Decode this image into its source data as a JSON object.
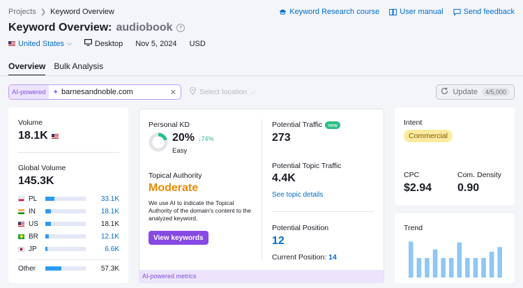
{
  "breadcrumb": {
    "root": "Projects",
    "current": "Keyword Overview"
  },
  "links": {
    "course": "Keyword Research course",
    "manual": "User manual",
    "feedback": "Send feedback"
  },
  "header": {
    "title": "Keyword Overview:",
    "keyword": "audiobook"
  },
  "meta": {
    "country": "United States",
    "device": "Desktop",
    "date": "Nov 5, 2024",
    "currency": "USD"
  },
  "tabs": [
    "Overview",
    "Bulk Analysis"
  ],
  "search": {
    "ai_tag": "AI-powered",
    "value": "barnesandnoble.com",
    "location_placeholder": "Select location"
  },
  "update": {
    "label": "Update",
    "count": "4/5,000"
  },
  "volume": {
    "label": "Volume",
    "value": "18.1K",
    "global_label": "Global Volume",
    "global_value": "145.3K",
    "countries": [
      {
        "code": "PL",
        "value": "33.1K",
        "fraction": 0.23,
        "link": true
      },
      {
        "code": "IN",
        "value": "18.1K",
        "fraction": 0.13,
        "link": true
      },
      {
        "code": "US",
        "value": "18.1K",
        "fraction": 0.13,
        "link": false
      },
      {
        "code": "BR",
        "value": "12.1K",
        "fraction": 0.08,
        "link": true
      },
      {
        "code": "JP",
        "value": "6.6K",
        "fraction": 0.05,
        "link": true
      }
    ],
    "other": {
      "label": "Other",
      "value": "57.3K",
      "fraction": 0.39
    }
  },
  "kd": {
    "label": "Personal KD",
    "value": "20%",
    "change": "74%",
    "fraction": 0.2,
    "difficulty": "Easy",
    "topical_label": "Topical Authority",
    "topical_value": "Moderate",
    "desc": "We use AI to indicate the Topical Authority of the domain's content to the analyzed keyword.",
    "button": "View keywords"
  },
  "traffic": {
    "label": "Potential Traffic",
    "badge": "new",
    "value": "273",
    "topic_label": "Potential Topic Traffic",
    "topic_value": "4.4K",
    "topic_link": "See topic details",
    "position_label": "Potential Position",
    "position_value": "12",
    "current_label": "Current Position:",
    "current_value": "14"
  },
  "ai_footer": "AI-powered metrics",
  "intent": {
    "label": "Intent",
    "value": "Commercial"
  },
  "cpc": {
    "label": "CPC",
    "value": "$2.94",
    "density_label": "Com. Density",
    "density_value": "0.90"
  },
  "trend": {
    "label": "Trend",
    "values": [
      0.92,
      0.5,
      0.5,
      0.72,
      0.5,
      0.5,
      0.9,
      0.5,
      0.5,
      0.5,
      0.66,
      0.78
    ]
  },
  "colors": {
    "accent": "#006dca",
    "moderate": "#e78b07",
    "ai_purple": "#7a4fd9",
    "kd_green": "#2bbf87",
    "bar": "#8fc7f5"
  }
}
